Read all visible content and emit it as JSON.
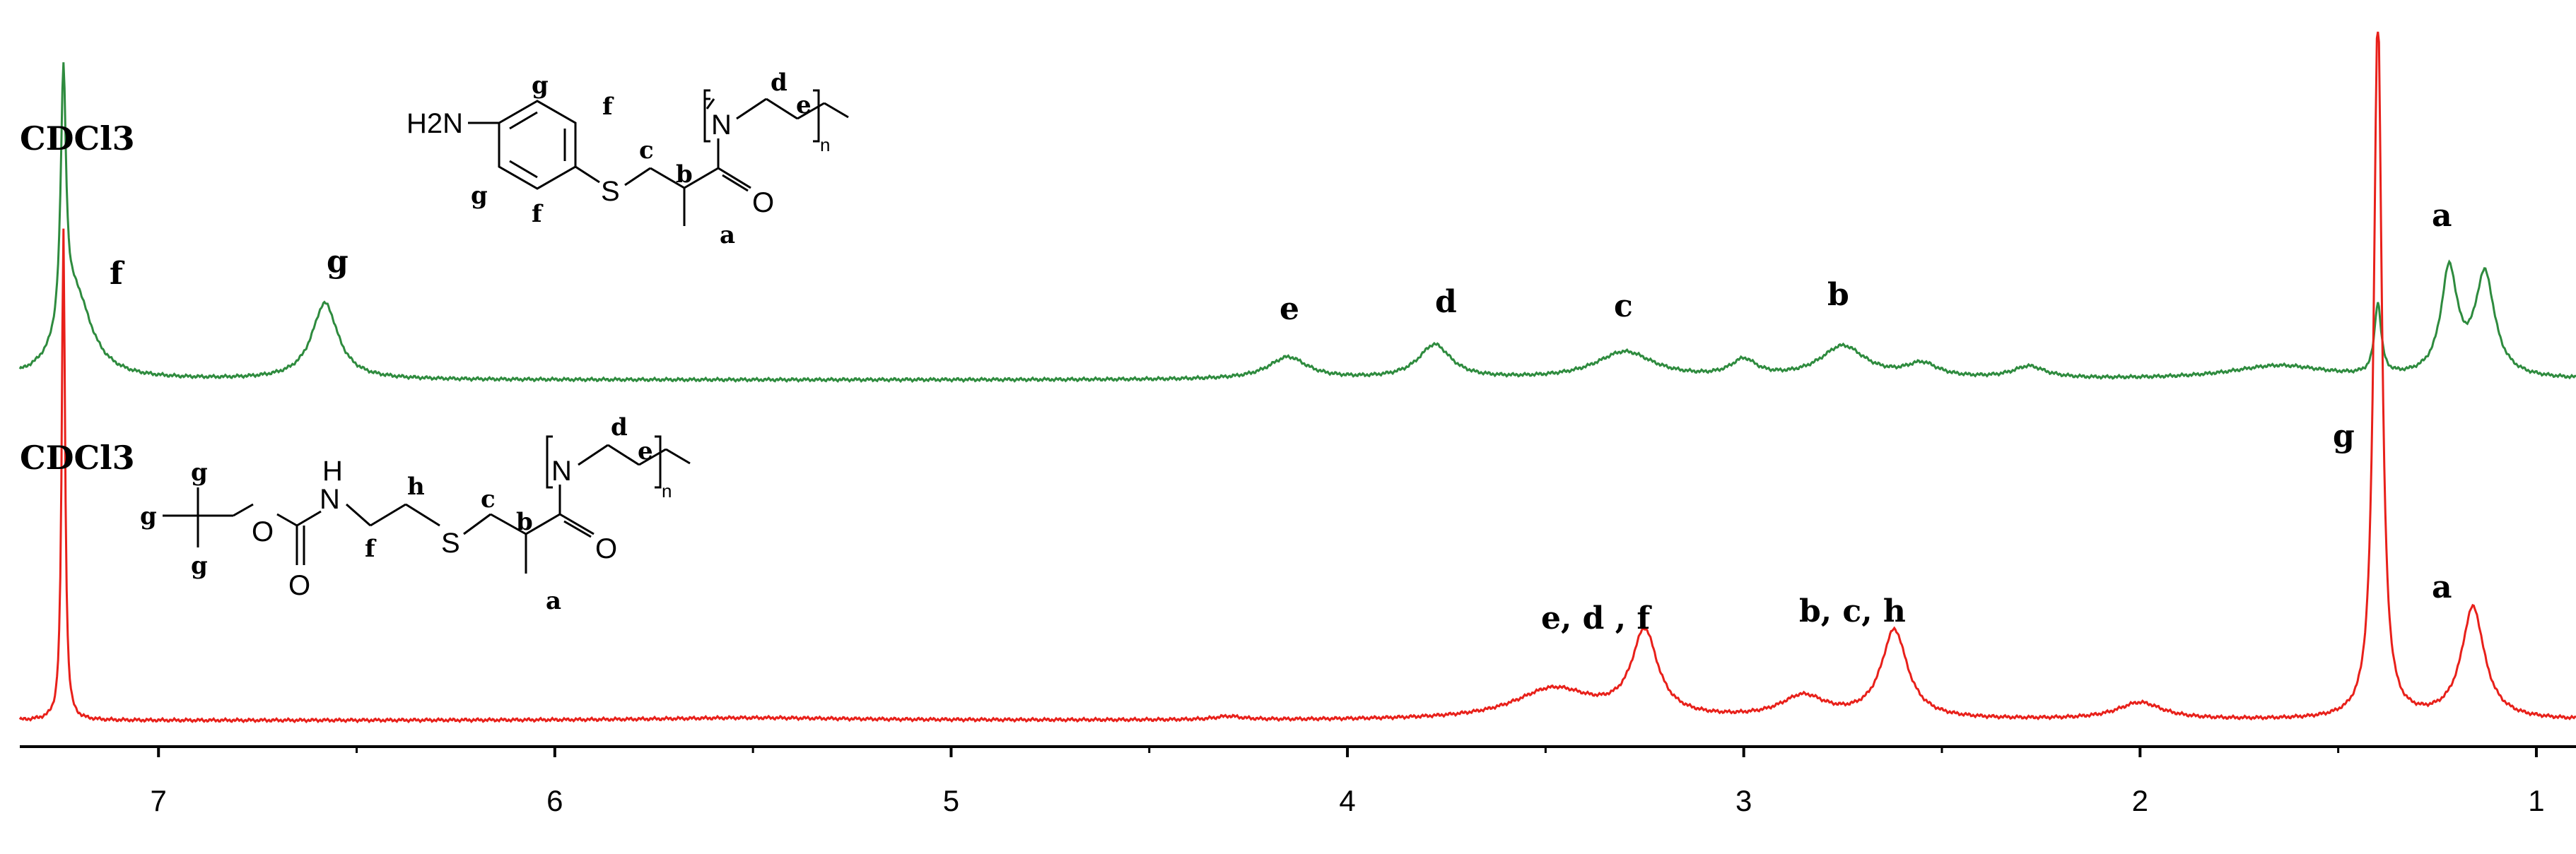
{
  "chart_data": {
    "type": "line",
    "title": "",
    "xlabel": "",
    "ylabel": "",
    "xlim": [
      7.35,
      0.9
    ],
    "x_reversed": true,
    "x_ticks": [
      7,
      6,
      5,
      4,
      3,
      2,
      1
    ],
    "x_tick_labels": [
      "7",
      "6",
      "5",
      "4",
      "3",
      "2",
      "1"
    ],
    "grid": false,
    "series": [
      {
        "color": "#2e8b3e",
        "solvent_label": "CDCl3",
        "baseline": 0.0,
        "peaks": [
          {
            "ppm": 7.24,
            "height": 1.5,
            "width": 0.008,
            "label": "",
            "kind": "solvent"
          },
          {
            "ppm": 7.21,
            "height": 0.5,
            "width": 0.05,
            "label": "f"
          },
          {
            "ppm": 6.58,
            "height": 0.45,
            "width": 0.04,
            "label": "g"
          },
          {
            "ppm": 4.15,
            "height": 0.13,
            "width": 0.06,
            "label": "e"
          },
          {
            "ppm": 3.78,
            "height": 0.2,
            "width": 0.05,
            "label": "d"
          },
          {
            "ppm": 3.3,
            "height": 0.16,
            "width": 0.09,
            "label": "c"
          },
          {
            "ppm": 3.0,
            "height": 0.1,
            "width": 0.04,
            "label": ""
          },
          {
            "ppm": 2.75,
            "height": 0.19,
            "width": 0.07,
            "label": "b"
          },
          {
            "ppm": 2.55,
            "height": 0.08,
            "width": 0.05,
            "label": ""
          },
          {
            "ppm": 2.28,
            "height": 0.07,
            "width": 0.05,
            "label": ""
          },
          {
            "ppm": 1.65,
            "height": 0.08,
            "width": 0.15,
            "label": ""
          },
          {
            "ppm": 1.4,
            "height": 0.42,
            "width": 0.01,
            "label": ""
          },
          {
            "ppm": 1.22,
            "height": 0.62,
            "width": 0.025,
            "label": "a"
          },
          {
            "ppm": 1.13,
            "height": 0.6,
            "width": 0.03,
            "label": ""
          }
        ]
      },
      {
        "color": "#e8201a",
        "solvent_label": "CDCl3",
        "baseline": 0.0,
        "peaks": [
          {
            "ppm": 7.24,
            "height": 2.9,
            "width": 0.005,
            "label": "",
            "kind": "solvent"
          },
          {
            "ppm": 5.5,
            "height": 0.015,
            "width": 0.3,
            "label": ""
          },
          {
            "ppm": 4.3,
            "height": 0.02,
            "width": 0.04,
            "label": ""
          },
          {
            "ppm": 3.48,
            "height": 0.18,
            "width": 0.12,
            "label": ""
          },
          {
            "ppm": 3.25,
            "height": 0.5,
            "width": 0.04,
            "label": "e, d , f"
          },
          {
            "ppm": 2.85,
            "height": 0.13,
            "width": 0.07,
            "label": ""
          },
          {
            "ppm": 2.62,
            "height": 0.52,
            "width": 0.04,
            "label": "b, c, h"
          },
          {
            "ppm": 2.0,
            "height": 0.1,
            "width": 0.07,
            "label": ""
          },
          {
            "ppm": 1.4,
            "height": 4.2,
            "width": 0.012,
            "label": "g"
          },
          {
            "ppm": 1.16,
            "height": 0.66,
            "width": 0.035,
            "label": "a"
          }
        ]
      }
    ]
  },
  "structures": {
    "top": {
      "text": {
        "nh2": "H2N",
        "n": "N",
        "s": "S",
        "o": "O",
        "sub_n": "n"
      },
      "atom_letters": [
        "g",
        "f",
        "g",
        "f",
        "c",
        "b",
        "a",
        "d",
        "e"
      ]
    },
    "bottom": {
      "text": {
        "nh": "H",
        "n_carbamate": "N",
        "o_ester": "O",
        "o_carbonyl": "O",
        "s": "S",
        "n": "N",
        "o": "O",
        "sub_n": "n"
      },
      "atom_letters": [
        "g",
        "g",
        "g",
        "f",
        "h",
        "c",
        "b",
        "a",
        "d",
        "e"
      ]
    }
  },
  "colors": {
    "top_series": "#2e8b3e",
    "bottom_series": "#e8201a",
    "axis": "#000000"
  }
}
